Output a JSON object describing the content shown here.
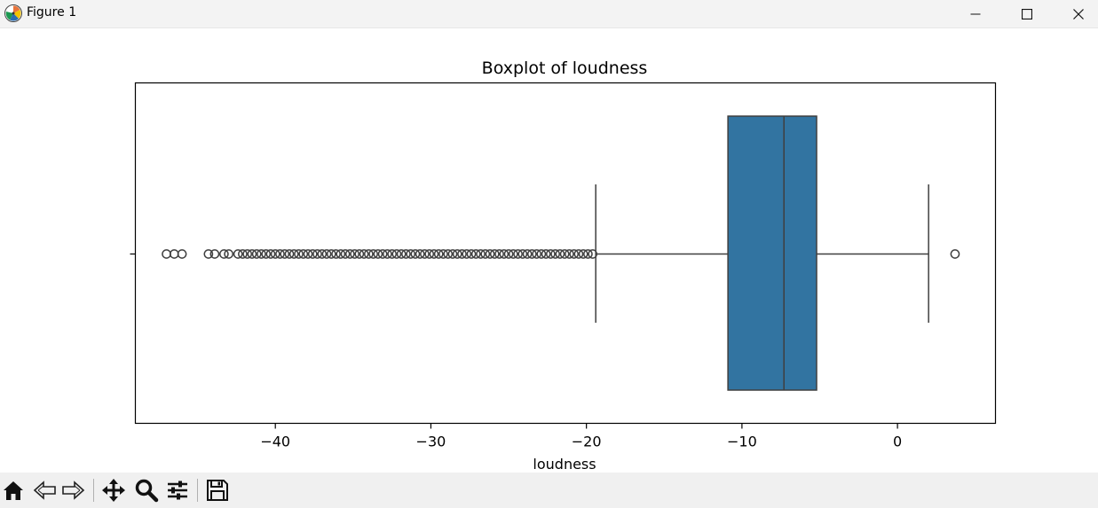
{
  "window": {
    "title": "Figure 1",
    "icons": [
      "matplotlib-icon",
      "minimize-icon",
      "maximize-icon",
      "close-icon"
    ]
  },
  "toolbar": {
    "buttons": [
      "home-icon",
      "back-icon",
      "forward-icon",
      "pan-icon",
      "zoom-icon",
      "configure-subplots-icon",
      "save-icon"
    ]
  },
  "chart_data": {
    "type": "boxplot",
    "orientation": "horizontal",
    "title": "Boxplot of loudness",
    "xlabel": "loudness",
    "ylabel": "",
    "xlim": [
      -49,
      6.3
    ],
    "xticks": [
      -40,
      -30,
      -20,
      -10,
      0
    ],
    "xtick_labels": [
      "−40",
      "−30",
      "−20",
      "−10",
      "0"
    ],
    "grid": false,
    "box": {
      "whisker_low": -19.4,
      "q1": -10.9,
      "median": -7.3,
      "q3": -5.2,
      "whisker_high": 2.0
    },
    "outliers": [
      -47.0,
      -46.5,
      -46.0,
      -44.3,
      -43.9,
      -43.3,
      -43.0,
      -42.4,
      -42.1,
      -41.8,
      -41.5,
      -41.2,
      -40.9,
      -40.6,
      -40.3,
      -40.0,
      -39.7,
      -39.4,
      -39.1,
      -38.8,
      -38.5,
      -38.2,
      -37.9,
      -37.6,
      -37.3,
      -37.0,
      -36.7,
      -36.4,
      -36.1,
      -35.8,
      -35.5,
      -35.2,
      -34.9,
      -34.6,
      -34.3,
      -34.0,
      -33.7,
      -33.4,
      -33.1,
      -32.8,
      -32.5,
      -32.2,
      -31.9,
      -31.6,
      -31.3,
      -31.0,
      -30.7,
      -30.4,
      -30.1,
      -29.8,
      -29.5,
      -29.2,
      -28.9,
      -28.6,
      -28.3,
      -28.0,
      -27.7,
      -27.4,
      -27.1,
      -26.8,
      -26.5,
      -26.2,
      -25.9,
      -25.6,
      -25.3,
      -25.0,
      -24.7,
      -24.4,
      -24.1,
      -23.8,
      -23.5,
      -23.2,
      -22.9,
      -22.6,
      -22.3,
      -22.0,
      -21.7,
      -21.4,
      -21.1,
      -20.8,
      -20.5,
      -20.2,
      -19.9,
      -19.6,
      3.7
    ],
    "colors": {
      "box_fill": "#3274a1",
      "lines": "#3f3f3f",
      "outlier_edge": "#3f3f3f"
    }
  }
}
